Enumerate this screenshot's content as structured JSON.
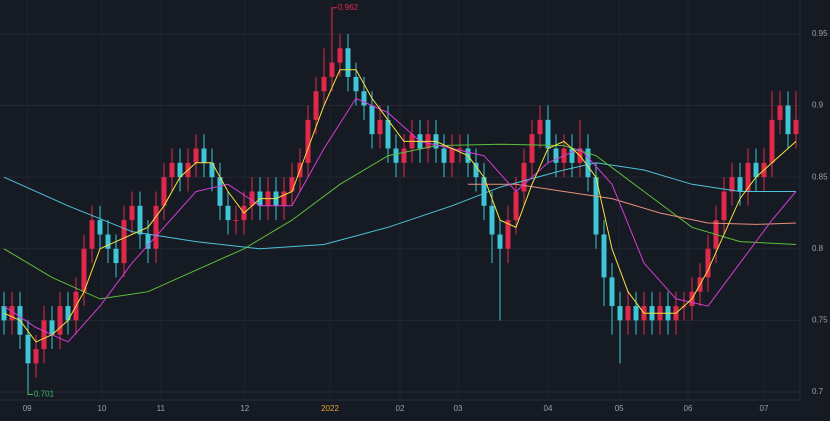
{
  "chart_data": {
    "type": "candlestick",
    "x": [
      0,
      1,
      2,
      3,
      4,
      5,
      6,
      7,
      8,
      9,
      10,
      11,
      12,
      13,
      14,
      15,
      16,
      17,
      18,
      19,
      20,
      21,
      22,
      23,
      24,
      25,
      26,
      27,
      28,
      29,
      30,
      31,
      32,
      33,
      34,
      35,
      36,
      37,
      38,
      39,
      40,
      41,
      42,
      43,
      44,
      45,
      46,
      47,
      48,
      49,
      50,
      51,
      52,
      53,
      54,
      55,
      56,
      57,
      58,
      59,
      60,
      61,
      62,
      63,
      64,
      65,
      66,
      67,
      68,
      69,
      70,
      71,
      72,
      73,
      74,
      75,
      76,
      77,
      78,
      79,
      80,
      81,
      82,
      83,
      84,
      85,
      86,
      87,
      88,
      89,
      90,
      91,
      92,
      93,
      94,
      95,
      96,
      97,
      98,
      99
    ],
    "open": [
      0.76,
      0.75,
      0.76,
      0.74,
      0.72,
      0.73,
      0.75,
      0.74,
      0.76,
      0.75,
      0.77,
      0.8,
      0.82,
      0.81,
      0.8,
      0.79,
      0.82,
      0.83,
      0.81,
      0.8,
      0.83,
      0.85,
      0.86,
      0.85,
      0.86,
      0.87,
      0.86,
      0.85,
      0.83,
      0.82,
      0.82,
      0.83,
      0.84,
      0.83,
      0.84,
      0.83,
      0.84,
      0.85,
      0.86,
      0.89,
      0.91,
      0.92,
      0.93,
      0.94,
      0.92,
      0.91,
      0.9,
      0.88,
      0.89,
      0.87,
      0.86,
      0.87,
      0.88,
      0.87,
      0.88,
      0.87,
      0.86,
      0.87,
      0.87,
      0.86,
      0.85,
      0.83,
      0.81,
      0.8,
      0.82,
      0.84,
      0.86,
      0.88,
      0.89,
      0.87,
      0.86,
      0.87,
      0.86,
      0.87,
      0.85,
      0.81,
      0.78,
      0.76,
      0.75,
      0.76,
      0.75,
      0.76,
      0.75,
      0.76,
      0.75,
      0.76,
      0.76,
      0.77,
      0.78,
      0.8,
      0.82,
      0.84,
      0.85,
      0.84,
      0.86,
      0.85,
      0.86,
      0.89,
      0.9,
      0.88
    ],
    "high": [
      0.77,
      0.77,
      0.77,
      0.75,
      0.74,
      0.76,
      0.76,
      0.77,
      0.77,
      0.78,
      0.81,
      0.83,
      0.83,
      0.82,
      0.81,
      0.83,
      0.84,
      0.84,
      0.82,
      0.84,
      0.86,
      0.87,
      0.87,
      0.87,
      0.88,
      0.88,
      0.87,
      0.86,
      0.84,
      0.83,
      0.84,
      0.85,
      0.85,
      0.85,
      0.85,
      0.85,
      0.86,
      0.87,
      0.9,
      0.92,
      0.94,
      0.962,
      0.95,
      0.95,
      0.93,
      0.92,
      0.91,
      0.9,
      0.9,
      0.88,
      0.88,
      0.89,
      0.89,
      0.89,
      0.89,
      0.88,
      0.88,
      0.88,
      0.88,
      0.87,
      0.86,
      0.84,
      0.82,
      0.83,
      0.85,
      0.87,
      0.89,
      0.9,
      0.9,
      0.88,
      0.88,
      0.88,
      0.89,
      0.88,
      0.86,
      0.82,
      0.79,
      0.77,
      0.77,
      0.77,
      0.77,
      0.77,
      0.77,
      0.77,
      0.77,
      0.77,
      0.78,
      0.79,
      0.81,
      0.83,
      0.85,
      0.86,
      0.86,
      0.87,
      0.87,
      0.87,
      0.91,
      0.91,
      0.91,
      0.91
    ],
    "low": [
      0.74,
      0.74,
      0.73,
      0.701,
      0.71,
      0.72,
      0.73,
      0.73,
      0.74,
      0.74,
      0.76,
      0.79,
      0.8,
      0.79,
      0.78,
      0.78,
      0.81,
      0.8,
      0.79,
      0.79,
      0.82,
      0.84,
      0.84,
      0.84,
      0.85,
      0.85,
      0.84,
      0.82,
      0.81,
      0.81,
      0.81,
      0.82,
      0.82,
      0.82,
      0.82,
      0.82,
      0.83,
      0.84,
      0.85,
      0.88,
      0.9,
      0.91,
      0.92,
      0.91,
      0.9,
      0.89,
      0.87,
      0.87,
      0.86,
      0.85,
      0.85,
      0.86,
      0.86,
      0.86,
      0.86,
      0.85,
      0.85,
      0.86,
      0.85,
      0.84,
      0.82,
      0.79,
      0.75,
      0.79,
      0.81,
      0.83,
      0.85,
      0.87,
      0.86,
      0.85,
      0.85,
      0.85,
      0.85,
      0.84,
      0.8,
      0.76,
      0.74,
      0.72,
      0.74,
      0.74,
      0.74,
      0.74,
      0.74,
      0.74,
      0.74,
      0.75,
      0.75,
      0.76,
      0.77,
      0.79,
      0.81,
      0.83,
      0.83,
      0.83,
      0.84,
      0.84,
      0.85,
      0.88,
      0.87,
      0.87
    ],
    "close": [
      0.75,
      0.76,
      0.74,
      0.72,
      0.73,
      0.75,
      0.74,
      0.76,
      0.75,
      0.77,
      0.8,
      0.82,
      0.81,
      0.8,
      0.79,
      0.82,
      0.83,
      0.81,
      0.8,
      0.83,
      0.85,
      0.86,
      0.85,
      0.86,
      0.87,
      0.86,
      0.85,
      0.83,
      0.82,
      0.82,
      0.83,
      0.84,
      0.83,
      0.84,
      0.83,
      0.84,
      0.85,
      0.86,
      0.89,
      0.91,
      0.92,
      0.93,
      0.94,
      0.92,
      0.91,
      0.9,
      0.88,
      0.89,
      0.87,
      0.86,
      0.87,
      0.88,
      0.87,
      0.88,
      0.87,
      0.86,
      0.87,
      0.87,
      0.86,
      0.85,
      0.83,
      0.81,
      0.8,
      0.82,
      0.84,
      0.86,
      0.88,
      0.89,
      0.87,
      0.86,
      0.87,
      0.86,
      0.87,
      0.85,
      0.81,
      0.78,
      0.76,
      0.75,
      0.76,
      0.75,
      0.76,
      0.75,
      0.76,
      0.75,
      0.76,
      0.76,
      0.77,
      0.78,
      0.8,
      0.82,
      0.84,
      0.85,
      0.84,
      0.86,
      0.85,
      0.86,
      0.89,
      0.9,
      0.88,
      0.89
    ],
    "up_color": "#e0294a",
    "down_color": "#3fc5d6",
    "lines": [
      {
        "color": "#4fc3d9",
        "x": [
          0,
          8,
          16,
          24,
          32,
          40,
          48,
          56,
          62,
          70,
          74,
          80,
          86,
          92,
          99
        ],
        "values": [
          0.85,
          0.83,
          0.812,
          0.805,
          0.8,
          0.803,
          0.815,
          0.83,
          0.843,
          0.855,
          0.86,
          0.855,
          0.845,
          0.84,
          0.84
        ]
      },
      {
        "color": "#5fbf3a",
        "x": [
          0,
          6,
          12,
          18,
          24,
          30,
          36,
          42,
          48,
          54,
          62,
          70,
          74,
          80,
          86,
          92,
          99
        ],
        "values": [
          0.8,
          0.78,
          0.765,
          0.77,
          0.785,
          0.8,
          0.82,
          0.845,
          0.865,
          0.872,
          0.873,
          0.872,
          0.865,
          0.84,
          0.815,
          0.805,
          0.803
        ]
      },
      {
        "color": "#e8907a",
        "x": [
          58,
          64,
          70,
          76,
          82,
          88,
          94,
          99
        ],
        "values": [
          0.845,
          0.845,
          0.84,
          0.835,
          0.825,
          0.818,
          0.817,
          0.818
        ]
      },
      {
        "color": "#d63bd6",
        "x": [
          0,
          4,
          8,
          12,
          16,
          20,
          24,
          28,
          32,
          36,
          40,
          44,
          48,
          52,
          56,
          60,
          64,
          68,
          72,
          76,
          80,
          84,
          88,
          92,
          96,
          99
        ],
        "values": [
          0.76,
          0.745,
          0.735,
          0.76,
          0.79,
          0.815,
          0.84,
          0.845,
          0.83,
          0.83,
          0.87,
          0.905,
          0.895,
          0.875,
          0.87,
          0.865,
          0.84,
          0.86,
          0.87,
          0.845,
          0.79,
          0.765,
          0.76,
          0.79,
          0.82,
          0.84
        ]
      },
      {
        "color": "#f5e33b",
        "x": [
          0,
          2,
          4,
          6,
          8,
          10,
          12,
          14,
          16,
          18,
          20,
          22,
          24,
          26,
          28,
          30,
          32,
          34,
          36,
          38,
          40,
          42,
          44,
          46,
          48,
          50,
          52,
          54,
          56,
          58,
          60,
          62,
          64,
          66,
          68,
          70,
          72,
          74,
          76,
          78,
          80,
          82,
          84,
          86,
          88,
          90,
          92,
          94,
          96,
          98,
          99
        ],
        "values": [
          0.755,
          0.75,
          0.735,
          0.74,
          0.75,
          0.77,
          0.8,
          0.805,
          0.81,
          0.815,
          0.83,
          0.85,
          0.86,
          0.86,
          0.84,
          0.825,
          0.835,
          0.835,
          0.84,
          0.87,
          0.9,
          0.925,
          0.925,
          0.905,
          0.89,
          0.875,
          0.875,
          0.875,
          0.87,
          0.865,
          0.85,
          0.82,
          0.815,
          0.845,
          0.87,
          0.875,
          0.865,
          0.85,
          0.8,
          0.77,
          0.755,
          0.755,
          0.755,
          0.765,
          0.785,
          0.81,
          0.835,
          0.85,
          0.86,
          0.87,
          0.875
        ]
      }
    ],
    "annotations": [
      {
        "label": "0.962",
        "value": 0.962,
        "x": 41,
        "color": "#e0294a"
      },
      {
        "label": "0.701",
        "value": 0.701,
        "x": 3,
        "color": "#3fbf6a"
      }
    ],
    "xlim": [
      -0.5,
      99.5
    ],
    "ylim": [
      0.6944,
      0.9737
    ],
    "yticks": [
      0.7,
      0.75,
      0.8,
      0.85,
      0.9,
      0.95
    ],
    "xticks": [
      {
        "value": 2.9,
        "label": "09"
      },
      {
        "value": 12.25,
        "label": "10"
      },
      {
        "value": 19.6,
        "label": "11"
      },
      {
        "value": 30.1,
        "label": "12"
      },
      {
        "value": 40.75,
        "label": "2022"
      },
      {
        "value": 49.5,
        "label": "02"
      },
      {
        "value": 56.75,
        "label": "03"
      },
      {
        "value": 68,
        "label": "04"
      },
      {
        "value": 76.9,
        "label": "05"
      },
      {
        "value": 85.5,
        "label": "06"
      },
      {
        "value": 95,
        "label": "07"
      }
    ],
    "highlight_xtick": 4,
    "highlight_color": "#e8a33d",
    "grid": true
  }
}
